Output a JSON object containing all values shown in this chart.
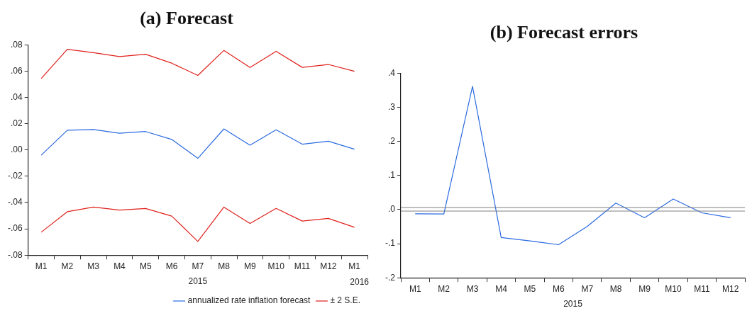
{
  "chart_data": [
    {
      "type": "line",
      "title": "(a) Forecast",
      "xlabel": "2015",
      "annotations": [
        "2016"
      ],
      "legend": "bottom right",
      "categories": [
        "M1",
        "M2",
        "M3",
        "M4",
        "M5",
        "M6",
        "M7",
        "M8",
        "M9",
        "M10",
        "M11",
        "M12",
        "M1"
      ],
      "ylim": [
        -0.08,
        0.08
      ],
      "yticks": [
        {
          "value": -0.08,
          "label": "-.08"
        },
        {
          "value": -0.06,
          "label": "-.06"
        },
        {
          "value": -0.04,
          "label": "-.04"
        },
        {
          "value": -0.02,
          "label": "-.02"
        },
        {
          "value": 0,
          "label": ".00"
        },
        {
          "value": 0.02,
          "label": ".02"
        },
        {
          "value": 0.04,
          "label": ".04"
        },
        {
          "value": 0.06,
          "label": ".06"
        },
        {
          "value": 0.08,
          "label": ".08"
        }
      ],
      "series": [
        {
          "name": "annualized rate inflation forecast",
          "color": "#2a6ae0",
          "values": [
            -0.004,
            0.015,
            0.0155,
            0.0127,
            0.014,
            0.008,
            -0.0064,
            0.016,
            0.0036,
            0.0153,
            0.0044,
            0.0066,
            0.0006
          ]
        },
        {
          "name": "± 2 S.E.",
          "color": "#e0201b",
          "values": [
            0.0543,
            0.0765,
            0.074,
            0.071,
            0.0728,
            0.066,
            0.0567,
            0.0757,
            0.0627,
            0.075,
            0.0628,
            0.065,
            0.0598
          ]
        },
        {
          "color": "#e0201b",
          "values": [
            -0.0626,
            -0.047,
            -0.0435,
            -0.0457,
            -0.0445,
            -0.0503,
            -0.0696,
            -0.0435,
            -0.0559,
            -0.0445,
            -0.0541,
            -0.0521,
            -0.0588
          ]
        }
      ]
    },
    {
      "type": "line",
      "title": "(b) Forecast errors",
      "xlabel": "2015",
      "categories": [
        "M1",
        "M2",
        "M3",
        "M4",
        "M5",
        "M6",
        "M7",
        "M8",
        "M9",
        "M10",
        "M11",
        "M12"
      ],
      "ylim": [
        -0.2,
        0.4
      ],
      "yticks": [
        {
          "value": -0.2,
          "label": "-.2"
        },
        {
          "value": -0.1,
          "label": "-.1"
        },
        {
          "value": 0,
          "label": ".0"
        },
        {
          "value": 0.1,
          "label": ".1"
        },
        {
          "value": 0.2,
          "label": ".2"
        },
        {
          "value": 0.3,
          "label": ".3"
        },
        {
          "value": 0.4,
          "label": ".4"
        }
      ],
      "ref_lines": [
        {
          "axis": "y",
          "value": 0.006,
          "color": "#808080"
        },
        {
          "axis": "y",
          "value": -0.0045,
          "color": "#808080"
        }
      ],
      "series": [
        {
          "color": "#2a6ae0",
          "values": [
            -0.0126,
            -0.013,
            0.361,
            -0.082,
            -0.092,
            -0.103,
            -0.0495,
            0.019,
            -0.024,
            0.031,
            -0.0096,
            -0.024
          ]
        }
      ]
    }
  ]
}
